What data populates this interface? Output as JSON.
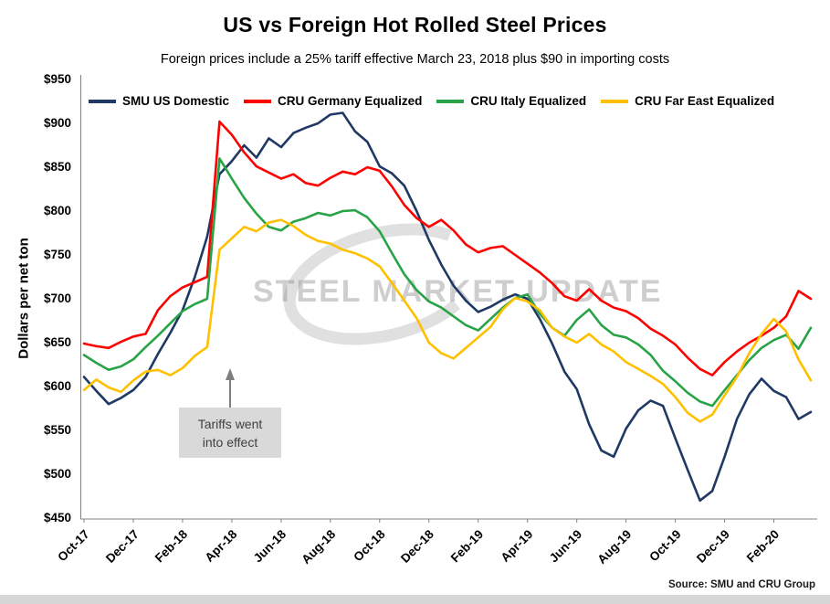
{
  "chart_data": {
    "type": "line",
    "title": "US vs Foreign Hot Rolled Steel Prices",
    "subtitle": "Foreign prices include a 25% tariff effective March 23, 2018 plus $90 in importing costs",
    "ylabel": "Dollars per net ton",
    "ylim": [
      450,
      950
    ],
    "grid": false,
    "legend_position": "top",
    "x_unit": "half-month steps starting Oct-2017",
    "y_ticks": [
      {
        "value": 950,
        "label": "$950"
      },
      {
        "value": 900,
        "label": "$900"
      },
      {
        "value": 850,
        "label": "$850"
      },
      {
        "value": 800,
        "label": "$800"
      },
      {
        "value": 750,
        "label": "$750"
      },
      {
        "value": 700,
        "label": "$700"
      },
      {
        "value": 650,
        "label": "$650"
      },
      {
        "value": 600,
        "label": "$600"
      },
      {
        "value": 550,
        "label": "$550"
      },
      {
        "value": 500,
        "label": "$500"
      },
      {
        "value": 450,
        "label": "$450"
      }
    ],
    "x_ticks": [
      {
        "index": 0,
        "label": "Oct-17"
      },
      {
        "index": 4,
        "label": "Dec-17"
      },
      {
        "index": 8,
        "label": "Feb-18"
      },
      {
        "index": 12,
        "label": "Apr-18"
      },
      {
        "index": 16,
        "label": "Jun-18"
      },
      {
        "index": 20,
        "label": "Aug-18"
      },
      {
        "index": 24,
        "label": "Oct-18"
      },
      {
        "index": 28,
        "label": "Dec-18"
      },
      {
        "index": 32,
        "label": "Feb-19"
      },
      {
        "index": 36,
        "label": "Apr-19"
      },
      {
        "index": 40,
        "label": "Jun-19"
      },
      {
        "index": 44,
        "label": "Aug-19"
      },
      {
        "index": 48,
        "label": "Oct-19"
      },
      {
        "index": 52,
        "label": "Dec-19"
      },
      {
        "index": 56,
        "label": "Feb-20"
      }
    ],
    "series": [
      {
        "name": "SMU US Domestic",
        "color": "#1F3864",
        "values": [
          612,
          596,
          581,
          588,
          597,
          612,
          638,
          662,
          688,
          726,
          772,
          843,
          858,
          876,
          862,
          884,
          874,
          890,
          896,
          901,
          911,
          913,
          892,
          880,
          852,
          844,
          830,
          801,
          768,
          740,
          716,
          699,
          686,
          692,
          700,
          706,
          701,
          678,
          650,
          618,
          598,
          558,
          528,
          521,
          553,
          574,
          585,
          579,
          542,
          506,
          471,
          482,
          521,
          564,
          592,
          610,
          596,
          589,
          564,
          572
        ]
      },
      {
        "name": "CRU Germany Equalized",
        "color": "#FF0000",
        "values": [
          650,
          647,
          645,
          652,
          658,
          661,
          688,
          704,
          714,
          720,
          726,
          903,
          888,
          868,
          852,
          845,
          838,
          843,
          833,
          830,
          839,
          846,
          843,
          851,
          847,
          829,
          808,
          793,
          783,
          791,
          779,
          763,
          754,
          759,
          761,
          751,
          741,
          731,
          719,
          704,
          699,
          712,
          699,
          691,
          687,
          679,
          667,
          659,
          649,
          634,
          621,
          614,
          629,
          641,
          651,
          659,
          668,
          681,
          710,
          701
        ]
      },
      {
        "name": "CRU Italy Equalized",
        "color": "#29A347",
        "values": [
          637,
          628,
          620,
          624,
          632,
          646,
          659,
          673,
          687,
          695,
          701,
          861,
          838,
          816,
          798,
          783,
          779,
          789,
          793,
          799,
          796,
          801,
          802,
          794,
          778,
          753,
          729,
          711,
          698,
          691,
          681,
          671,
          665,
          678,
          691,
          702,
          706,
          684,
          668,
          659,
          677,
          689,
          671,
          660,
          657,
          649,
          637,
          619,
          607,
          594,
          584,
          579,
          597,
          614,
          631,
          645,
          654,
          660,
          644,
          668
        ]
      },
      {
        "name": "CRU Far East Equalized",
        "color": "#FFC000",
        "values": [
          597,
          609,
          600,
          595,
          608,
          618,
          620,
          614,
          622,
          636,
          646,
          757,
          770,
          783,
          778,
          788,
          791,
          784,
          774,
          767,
          764,
          757,
          753,
          747,
          738,
          719,
          699,
          679,
          651,
          639,
          633,
          645,
          657,
          669,
          689,
          702,
          698,
          688,
          668,
          658,
          651,
          661,
          649,
          641,
          629,
          621,
          613,
          604,
          589,
          571,
          561,
          569,
          591,
          612,
          639,
          661,
          678,
          664,
          632,
          608
        ]
      }
    ],
    "annotation": {
      "line1": "Tariffs went",
      "line2": "into effect"
    }
  },
  "watermark": {
    "text": "STEEL MARKET UPDATE"
  },
  "footer": {
    "source": "Source: SMU and CRU Group"
  }
}
